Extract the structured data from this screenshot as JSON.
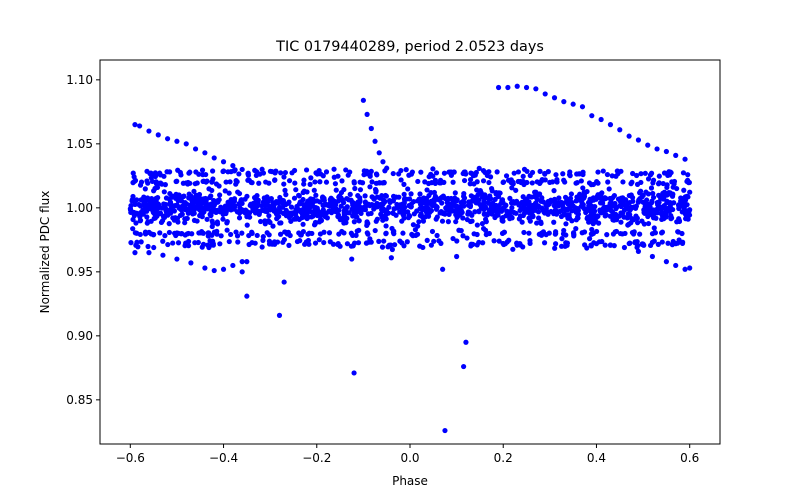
{
  "chart_data": {
    "type": "scatter",
    "title": "TIC 0179440289, period 2.0523 days",
    "xlabel": "Phase",
    "ylabel": "Normalized PDC flux",
    "xlim": [
      -0.665,
      0.665
    ],
    "ylim": [
      0.8155,
      1.1155
    ],
    "x_ticks": [
      -0.6,
      -0.4,
      -0.2,
      0.0,
      0.2,
      0.4,
      0.6
    ],
    "x_tick_labels": [
      "−0.6",
      "−0.4",
      "−0.2",
      "0.0",
      "0.2",
      "0.4",
      "0.6"
    ],
    "y_ticks": [
      0.85,
      0.9,
      0.95,
      1.0,
      1.05,
      1.1
    ],
    "y_tick_labels": [
      "0.85",
      "0.90",
      "0.95",
      "1.00",
      "1.05",
      "1.10"
    ],
    "marker_color": "#0000ff",
    "bands": [
      {
        "name": "dense-core",
        "phase_range": [
          -0.6,
          0.6
        ],
        "flux_center": 1.0,
        "flux_halfwidth": 0.013,
        "count": 1400
      },
      {
        "name": "upper-band-1",
        "phase_range": [
          -0.6,
          0.6
        ],
        "flux_center": 1.027,
        "flux_halfwidth": 0.003,
        "count": 160
      },
      {
        "name": "upper-band-2",
        "phase_range": [
          -0.6,
          0.6
        ],
        "flux_center": 1.02,
        "flux_halfwidth": 0.002,
        "count": 140
      },
      {
        "name": "lower-band-1",
        "phase_range": [
          -0.6,
          0.6
        ],
        "flux_center": 0.972,
        "flux_halfwidth": 0.003,
        "count": 160
      },
      {
        "name": "lower-band-2",
        "phase_range": [
          -0.6,
          0.6
        ],
        "flux_center": 0.98,
        "flux_halfwidth": 0.002,
        "count": 140
      }
    ],
    "series": [
      {
        "name": "upper-left-arc",
        "x": [
          -0.59,
          -0.58,
          -0.56,
          -0.54,
          -0.52,
          -0.5,
          -0.48,
          -0.46,
          -0.44,
          -0.42,
          -0.4,
          -0.38,
          -0.36
        ],
        "y": [
          1.065,
          1.064,
          1.06,
          1.057,
          1.054,
          1.052,
          1.05,
          1.046,
          1.043,
          1.039,
          1.036,
          1.033,
          1.03
        ]
      },
      {
        "name": "lower-left-arc",
        "x": [
          -0.59,
          -0.56,
          -0.53,
          -0.5,
          -0.47,
          -0.44,
          -0.42,
          -0.4,
          -0.38,
          -0.36,
          -0.35
        ],
        "y": [
          0.965,
          0.965,
          0.963,
          0.96,
          0.957,
          0.953,
          0.951,
          0.952,
          0.955,
          0.958,
          0.958
        ]
      },
      {
        "name": "upper-right-arc",
        "x": [
          0.19,
          0.21,
          0.23,
          0.25,
          0.27,
          0.29,
          0.31,
          0.33,
          0.35,
          0.37,
          0.39,
          0.41,
          0.43,
          0.45,
          0.47,
          0.49,
          0.51,
          0.53,
          0.55,
          0.57,
          0.59
        ],
        "y": [
          1.094,
          1.094,
          1.095,
          1.094,
          1.093,
          1.089,
          1.086,
          1.083,
          1.081,
          1.079,
          1.072,
          1.069,
          1.065,
          1.061,
          1.056,
          1.053,
          1.049,
          1.046,
          1.044,
          1.041,
          1.038
        ]
      },
      {
        "name": "lower-right-arc",
        "x": [
          0.4,
          0.43,
          0.46,
          0.49,
          0.52,
          0.55,
          0.57,
          0.59,
          0.6
        ],
        "y": [
          0.972,
          0.971,
          0.969,
          0.966,
          0.962,
          0.958,
          0.955,
          0.952,
          0.953
        ]
      },
      {
        "name": "descending-streak",
        "x": [
          -0.1,
          -0.092,
          -0.083,
          -0.075,
          -0.066,
          -0.058,
          -0.05
        ],
        "y": [
          1.084,
          1.073,
          1.062,
          1.052,
          1.043,
          1.036,
          1.031
        ]
      },
      {
        "name": "outliers",
        "x": [
          -0.35,
          -0.36,
          -0.28,
          -0.27,
          -0.12,
          -0.125,
          -0.04,
          0.07,
          0.1,
          0.12,
          0.115,
          0.075
        ],
        "y": [
          0.931,
          0.95,
          0.916,
          0.942,
          0.871,
          0.96,
          0.961,
          0.952,
          0.962,
          0.895,
          0.876,
          0.826
        ]
      }
    ]
  }
}
